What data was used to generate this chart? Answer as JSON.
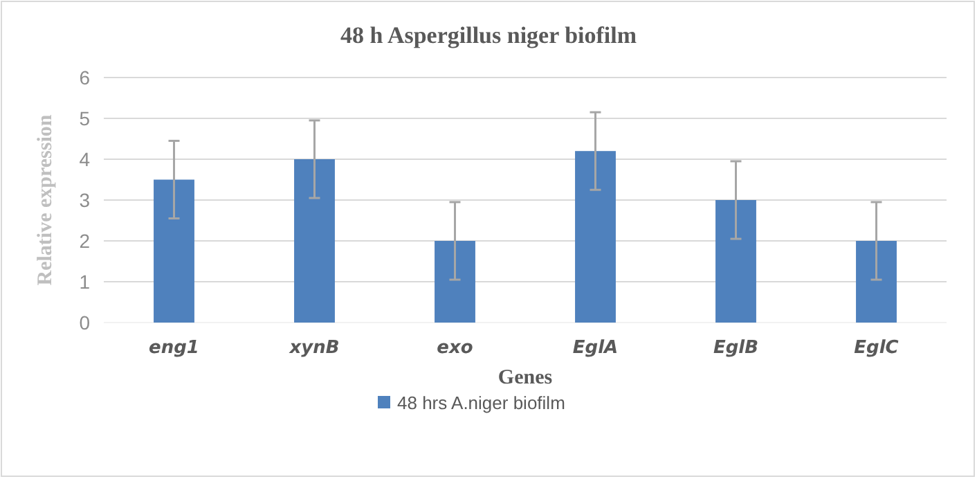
{
  "chart_data": {
    "type": "bar",
    "title": "48 h Aspergillus niger biofilm",
    "xlabel": "Genes",
    "ylabel": "Relative expression",
    "categories": [
      "eng1",
      "xynB",
      "exo",
      "EglA",
      "EglB",
      "EglC"
    ],
    "series": [
      {
        "name": "48 hrs A.niger biofilm",
        "color": "#4f81bd",
        "values": [
          3.5,
          4,
          2,
          4.2,
          3,
          2
        ],
        "errors": [
          0.95,
          0.95,
          0.95,
          0.95,
          0.95,
          0.95
        ]
      }
    ],
    "ylim": [
      0,
      6
    ],
    "yticks": [
      0,
      1,
      2,
      3,
      4,
      5,
      6
    ],
    "grid": "y",
    "legend": "bottom"
  }
}
